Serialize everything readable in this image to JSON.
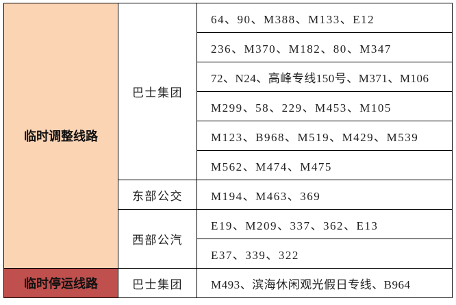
{
  "colors": {
    "adjusted_bg": "#FBD4B4",
    "suspended_bg": "#C0504D"
  },
  "adjusted": {
    "label": "临时调整线路",
    "operators": [
      {
        "name": "巴士集团",
        "routes": [
          "64、90、M388、M133、E12",
          "236、M370、M182、80、M347",
          "72、N24、高峰专线150号、M371、M106",
          "M299、58、229、M453、M105",
          "M123、B968、M519、M429、M539",
          "M562、M474、M475"
        ]
      },
      {
        "name": "东部公交",
        "routes": [
          "M194、M463、369"
        ]
      },
      {
        "name": "西部公汽",
        "routes": [
          "E19、M209、337、362、E13",
          "E37、339、322"
        ]
      }
    ]
  },
  "suspended": {
    "label": "临时停运线路",
    "operators": [
      {
        "name": "巴士集团",
        "routes": [
          "M493、滨海休闲观光假日专线、B964"
        ]
      }
    ]
  }
}
